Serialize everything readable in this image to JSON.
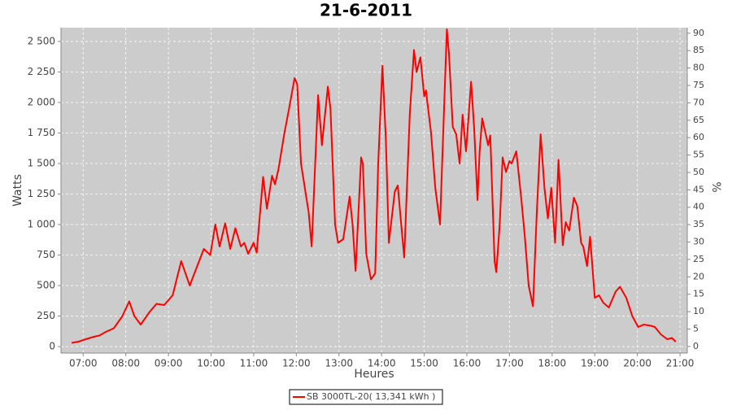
{
  "chart_data": {
    "type": "line",
    "title": "21-6-2011",
    "x_label": "Heures",
    "y_label": "Watts",
    "y2_label": "%",
    "x": [
      6.73,
      6.89,
      7.06,
      7.25,
      7.38,
      7.53,
      7.72,
      7.92,
      8.08,
      8.2,
      8.35,
      8.55,
      8.72,
      8.9,
      9.1,
      9.3,
      9.5,
      9.83,
      9.98,
      10.1,
      10.2,
      10.33,
      10.45,
      10.57,
      10.7,
      10.78,
      10.87,
      11.0,
      11.07,
      11.22,
      11.31,
      11.43,
      11.5,
      11.58,
      11.72,
      11.83,
      11.96,
      12.02,
      12.11,
      12.2,
      12.29,
      12.36,
      12.51,
      12.6,
      12.74,
      12.8,
      12.91,
      12.98,
      13.1,
      13.25,
      13.32,
      13.39,
      13.52,
      13.56,
      13.64,
      13.75,
      13.85,
      13.92,
      14.02,
      14.1,
      14.17,
      14.31,
      14.38,
      14.46,
      14.53,
      14.66,
      14.76,
      14.82,
      14.91,
      15.0,
      15.04,
      15.16,
      15.26,
      15.37,
      15.53,
      15.58,
      15.67,
      15.75,
      15.83,
      15.9,
      15.98,
      16.1,
      16.17,
      16.25,
      16.3,
      16.36,
      16.5,
      16.55,
      16.65,
      16.69,
      16.77,
      16.84,
      16.92,
      17.0,
      17.05,
      17.16,
      17.28,
      17.36,
      17.45,
      17.55,
      17.64,
      17.73,
      17.82,
      17.9,
      17.98,
      18.07,
      18.15,
      18.25,
      18.32,
      18.4,
      18.51,
      18.59,
      18.68,
      18.73,
      18.82,
      18.89,
      19.0,
      19.1,
      19.2,
      19.33,
      19.49,
      19.59,
      19.74,
      19.88,
      20.02,
      20.15,
      20.32,
      20.41,
      20.55,
      20.7,
      20.81,
      20.9
    ],
    "series": [
      {
        "name": "SB 3000TL-20( 13,341 kWh )",
        "color": "#ff0000",
        "values": [
          30,
          40,
          60,
          80,
          90,
          120,
          150,
          250,
          370,
          250,
          180,
          280,
          350,
          340,
          420,
          700,
          500,
          800,
          750,
          1000,
          820,
          1010,
          800,
          970,
          820,
          850,
          760,
          850,
          770,
          1390,
          1130,
          1400,
          1330,
          1450,
          1750,
          1950,
          2200,
          2150,
          1500,
          1300,
          1100,
          820,
          2060,
          1650,
          2130,
          1950,
          1000,
          850,
          880,
          1230,
          1000,
          620,
          1550,
          1500,
          760,
          550,
          600,
          1500,
          2300,
          1700,
          850,
          1270,
          1320,
          1000,
          730,
          1900,
          2430,
          2250,
          2370,
          2050,
          2100,
          1750,
          1300,
          1000,
          2600,
          2400,
          1800,
          1740,
          1500,
          1900,
          1600,
          2170,
          1800,
          1200,
          1600,
          1870,
          1650,
          1730,
          700,
          610,
          1000,
          1550,
          1430,
          1520,
          1500,
          1600,
          1200,
          900,
          500,
          330,
          1100,
          1740,
          1300,
          1050,
          1300,
          850,
          1530,
          830,
          1020,
          950,
          1220,
          1150,
          850,
          820,
          660,
          900,
          400,
          420,
          360,
          320,
          450,
          490,
          400,
          250,
          160,
          180,
          170,
          160,
          100,
          60,
          70,
          40
        ]
      }
    ],
    "xlim": [
      6.48,
      21.17
    ],
    "xticks": [
      {
        "value": 7,
        "label": "07:00"
      },
      {
        "value": 8,
        "label": "08:00"
      },
      {
        "value": 9,
        "label": "09:00"
      },
      {
        "value": 10,
        "label": "10:00"
      },
      {
        "value": 11,
        "label": "11:00"
      },
      {
        "value": 12,
        "label": "12:00"
      },
      {
        "value": 13,
        "label": "13:00"
      },
      {
        "value": 14,
        "label": "14:00"
      },
      {
        "value": 15,
        "label": "15:00"
      },
      {
        "value": 16,
        "label": "16:00"
      },
      {
        "value": 17,
        "label": "17:00"
      },
      {
        "value": 18,
        "label": "18:00"
      },
      {
        "value": 19,
        "label": "19:00"
      },
      {
        "value": 20,
        "label": "20:00"
      },
      {
        "value": 21,
        "label": "21:00"
      }
    ],
    "ylim": [
      -53,
      2613
    ],
    "yticks": [
      0,
      250,
      500,
      750,
      {
        "value": 1000,
        "label": "1 000"
      },
      {
        "value": 1250,
        "label": "1 250"
      },
      {
        "value": 1500,
        "label": "1 500"
      },
      {
        "value": 1750,
        "label": "1 750"
      },
      {
        "value": 2000,
        "label": "2 000"
      },
      {
        "value": 2250,
        "label": "2 250"
      },
      {
        "value": 2500,
        "label": "2 500"
      }
    ],
    "y2lim": [
      -1.9,
      91.6
    ],
    "y2ticks": [
      0,
      5,
      10,
      15,
      20,
      25,
      30,
      35,
      40,
      45,
      50,
      55,
      60,
      65,
      70,
      75,
      80,
      85,
      90
    ],
    "grid": true,
    "legend": "bottom"
  }
}
